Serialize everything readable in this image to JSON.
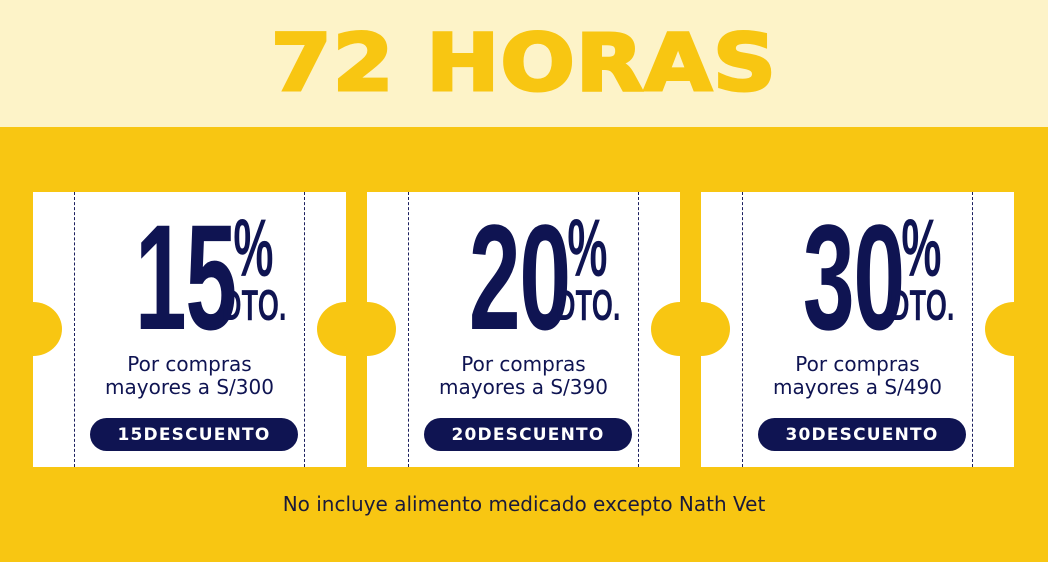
{
  "header": {
    "title": "72 HORAS"
  },
  "coupons": [
    {
      "number": "15",
      "percent": "%",
      "dto": "DTO.",
      "line1": "Por compras",
      "line2": "mayores a S/300",
      "code": "15DESCUENTO"
    },
    {
      "number": "20",
      "percent": "%",
      "dto": "DTO.",
      "line1": "Por compras",
      "line2": "mayores a S/390",
      "code": "20DESCUENTO"
    },
    {
      "number": "30",
      "percent": "%",
      "dto": "DTO.",
      "line1": "Por compras",
      "line2": "mayores a S/490",
      "code": "30DESCUENTO"
    }
  ],
  "footer": {
    "note": "No incluye alimento medicado excepto Nath Vet"
  },
  "colors": {
    "background": "#f8c612",
    "header_band": "#fdf3c8",
    "navy": "#0f1452",
    "coupon": "#ffffff"
  }
}
